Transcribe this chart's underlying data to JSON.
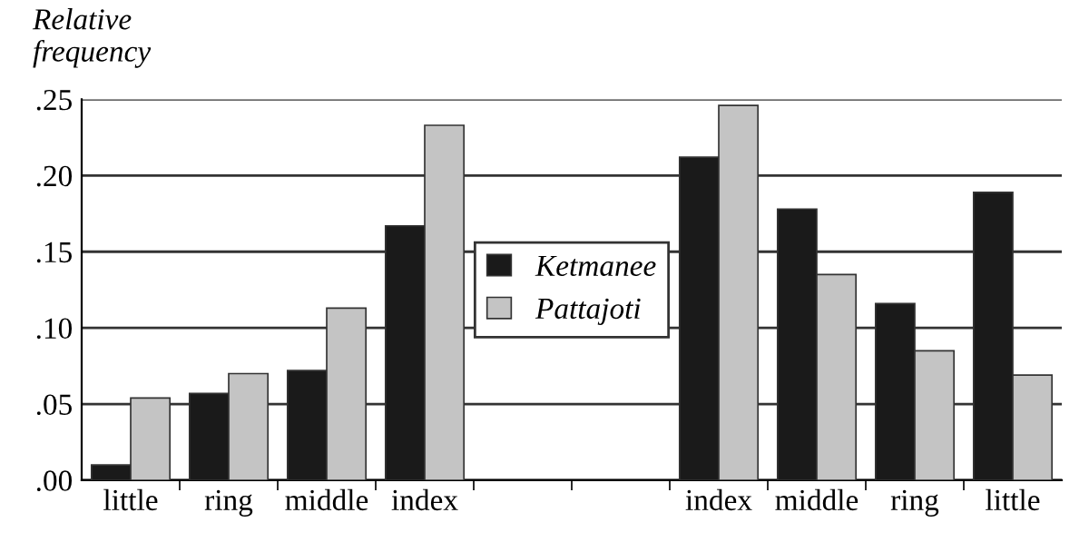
{
  "chart_data": {
    "type": "bar",
    "ylabel": "Relative\nfrequency",
    "categories": [
      "little",
      "ring",
      "middle",
      "index",
      null,
      null,
      "index",
      "middle",
      "ring",
      "little"
    ],
    "series": [
      {
        "name": "Ketmanee",
        "color": "#1a1a1a",
        "values": [
          0.01,
          0.057,
          0.072,
          0.167,
          null,
          null,
          0.212,
          0.178,
          0.116,
          0.189
        ]
      },
      {
        "name": "Pattajoti",
        "color": "#c4c4c4",
        "values": [
          0.054,
          0.07,
          0.113,
          0.233,
          null,
          null,
          0.246,
          0.135,
          0.085,
          0.069
        ]
      }
    ],
    "ylim": [
      0,
      0.25
    ],
    "yticks": [
      {
        "value": 0,
        "label": ".00"
      },
      {
        "value": 0.05,
        "label": ".05"
      },
      {
        "value": 0.1,
        "label": ".10"
      },
      {
        "value": 0.15,
        "label": ".15"
      },
      {
        "value": 0.2,
        "label": ".20"
      },
      {
        "value": 0.25,
        "label": ".25"
      }
    ],
    "grid": "y",
    "legend": "center"
  }
}
